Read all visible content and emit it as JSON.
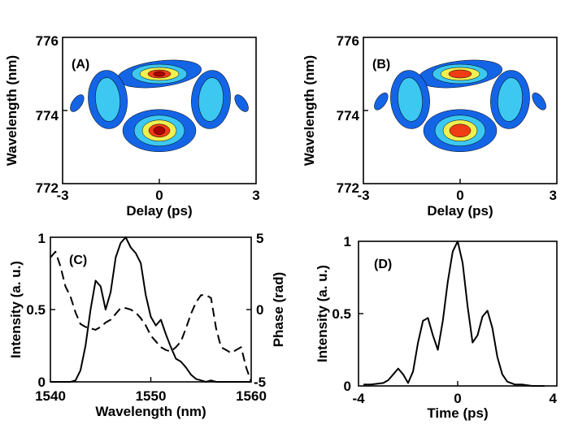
{
  "chart_data": [
    {
      "panel": "A",
      "type": "heatmap",
      "title": "",
      "panel_label": "(A)",
      "xlabel": "Delay (ps)",
      "ylabel": "Wavelength (nm)",
      "xlim": [
        -3,
        3
      ],
      "ylim": [
        772,
        776
      ],
      "xticks": [
        "-3",
        "0",
        "3"
      ],
      "yticks": [
        "772",
        "774",
        "776"
      ],
      "levels": [
        "#1464e6",
        "#3cc8f0",
        "#f0f050",
        "#f03c14",
        "#aa0000"
      ],
      "lobes": [
        {
          "delay": 0.0,
          "wavelength": 775.0,
          "peak_level": 5
        },
        {
          "delay": 0.0,
          "wavelength": 773.45,
          "peak_level": 5
        },
        {
          "delay": -1.6,
          "wavelength": 774.3,
          "peak_level": 2
        },
        {
          "delay": 1.6,
          "wavelength": 774.3,
          "peak_level": 2
        },
        {
          "delay": -2.55,
          "wavelength": 774.2,
          "peak_level": 1
        },
        {
          "delay": 2.55,
          "wavelength": 774.2,
          "peak_level": 1
        }
      ]
    },
    {
      "panel": "B",
      "type": "heatmap",
      "title": "",
      "panel_label": "(B)",
      "xlabel": "Delay (ps)",
      "ylabel": "Wavelength (nm)",
      "xlim": [
        -3,
        3
      ],
      "ylim": [
        772,
        776
      ],
      "xticks": [
        "-3",
        "0",
        "3"
      ],
      "yticks": [
        "772",
        "774",
        "776"
      ],
      "levels": [
        "#1464e6",
        "#3cc8f0",
        "#f0f050",
        "#f03c14",
        "#aa0000"
      ],
      "lobes": [
        {
          "delay": 0.0,
          "wavelength": 775.0,
          "peak_level": 4
        },
        {
          "delay": 0.0,
          "wavelength": 773.45,
          "peak_level": 4
        },
        {
          "delay": -1.55,
          "wavelength": 774.3,
          "peak_level": 2
        },
        {
          "delay": 1.55,
          "wavelength": 774.3,
          "peak_level": 2
        },
        {
          "delay": -2.45,
          "wavelength": 774.25,
          "peak_level": 1
        },
        {
          "delay": 2.45,
          "wavelength": 774.25,
          "peak_level": 1
        }
      ]
    },
    {
      "panel": "C",
      "type": "line",
      "title": "",
      "panel_label": "(C)",
      "xlabel": "Wavelength (nm)",
      "ylabel": "Intensity (a. u.)",
      "ylabel_right": "Phase (rad)",
      "xlim": [
        1540,
        1560
      ],
      "ylim": [
        0,
        1
      ],
      "ylim_right": [
        -5,
        5
      ],
      "xticks": [
        "1540",
        "1550",
        "1560"
      ],
      "yticks": [
        "0",
        "0.5",
        "1"
      ],
      "yticks_right": [
        "-5",
        "0",
        "5"
      ],
      "series": [
        {
          "style": "solid",
          "axis": "left",
          "x": [
            1540,
            1541,
            1542,
            1542.5,
            1543,
            1543.5,
            1544,
            1544.5,
            1545,
            1545.5,
            1546,
            1546.5,
            1547,
            1547.5,
            1548,
            1548.5,
            1549,
            1549.5,
            1550,
            1550.5,
            1551,
            1551.5,
            1552,
            1552.5,
            1553,
            1553.5,
            1554,
            1554.5,
            1555,
            1555.5,
            1556,
            1556.5,
            1557,
            1558,
            1559,
            1560
          ],
          "y": [
            0,
            0,
            0,
            0.01,
            0.08,
            0.25,
            0.5,
            0.7,
            0.66,
            0.5,
            0.62,
            0.86,
            0.96,
            1.0,
            0.93,
            0.89,
            0.82,
            0.6,
            0.45,
            0.39,
            0.43,
            0.33,
            0.24,
            0.16,
            0.14,
            0.1,
            0.05,
            0.02,
            0.01,
            0.0,
            0.01,
            0.0,
            0.0,
            0.0,
            0.0,
            0.0
          ]
        },
        {
          "style": "dashed",
          "axis": "right",
          "x": [
            1540,
            1540.5,
            1541,
            1541.5,
            1542,
            1542.5,
            1543,
            1543.5,
            1544,
            1544.5,
            1545,
            1545.5,
            1546,
            1546.5,
            1547,
            1547.5,
            1548,
            1548.5,
            1549,
            1549.5,
            1550,
            1550.5,
            1551,
            1551.5,
            1552,
            1552.5,
            1553,
            1553.5,
            1554,
            1554.5,
            1555,
            1555.5,
            1556,
            1556.5,
            1557,
            1557.5,
            1558,
            1558.5,
            1559,
            1559.5,
            1560
          ],
          "y": [
            3.6,
            4.0,
            3.0,
            1.6,
            0.9,
            -0.2,
            -1.0,
            -1.2,
            -1.3,
            -1.4,
            -1.2,
            -0.9,
            -0.7,
            -0.3,
            0.1,
            0.1,
            0.0,
            -0.2,
            -0.6,
            -1.1,
            -1.8,
            -2.2,
            -2.6,
            -2.8,
            -2.9,
            -2.6,
            -2.2,
            -1.3,
            -0.3,
            0.5,
            1.0,
            1.0,
            0.8,
            -1.3,
            -2.6,
            -2.8,
            -3.0,
            -2.8,
            -2.6,
            -4.0,
            -5.0
          ]
        }
      ]
    },
    {
      "panel": "D",
      "type": "line",
      "title": "",
      "panel_label": "(D)",
      "xlabel": "Time (ps)",
      "ylabel": "Intensity (a. u.)",
      "xlim": [
        -4,
        4
      ],
      "ylim": [
        0,
        1
      ],
      "xticks": [
        "-4",
        "0",
        "4"
      ],
      "yticks": [
        "0",
        "0.5",
        "1"
      ],
      "series": [
        {
          "style": "solid",
          "axis": "left",
          "x": [
            -3.8,
            -3.5,
            -3.0,
            -2.8,
            -2.6,
            -2.4,
            -2.2,
            -2.0,
            -1.8,
            -1.6,
            -1.4,
            -1.2,
            -1.0,
            -0.8,
            -0.6,
            -0.4,
            -0.2,
            0.0,
            0.2,
            0.4,
            0.6,
            0.8,
            1.0,
            1.2,
            1.4,
            1.6,
            1.8,
            2.0,
            2.3,
            2.6,
            3.0,
            3.5
          ],
          "y": [
            0.01,
            0.01,
            0.02,
            0.04,
            0.08,
            0.12,
            0.08,
            0.02,
            0.1,
            0.3,
            0.45,
            0.47,
            0.35,
            0.25,
            0.45,
            0.72,
            0.93,
            1.0,
            0.85,
            0.55,
            0.3,
            0.35,
            0.48,
            0.52,
            0.4,
            0.2,
            0.08,
            0.03,
            0.01,
            0.01,
            0.0,
            0.0
          ]
        }
      ]
    }
  ]
}
